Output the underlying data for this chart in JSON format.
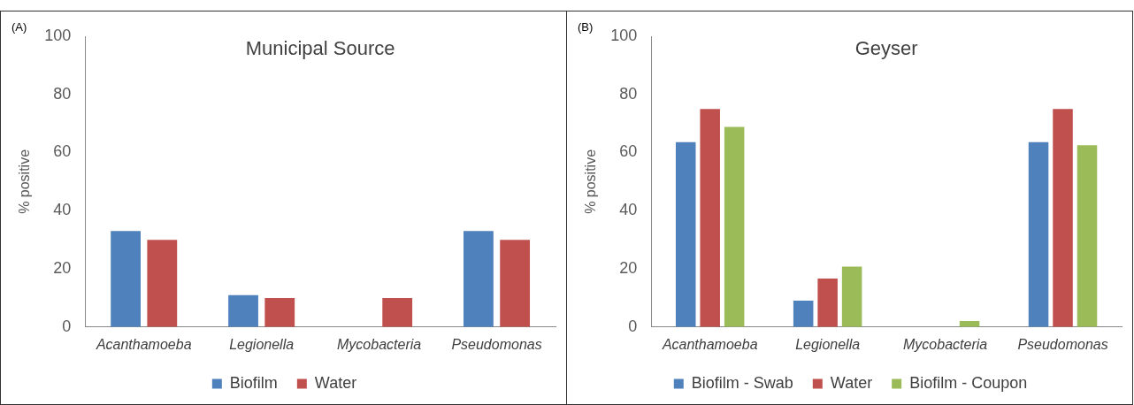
{
  "chart_data": [
    {
      "type": "bar",
      "title": "Municipal Source",
      "ylabel": "% positive",
      "annotations": [
        "(A)"
      ],
      "categories": [
        "Acanthamoeba",
        "Legionella",
        "Mycobacteria",
        "Pseudomonas"
      ],
      "series": [
        {
          "name": "Biofilm",
          "color": "#4f81bd",
          "values": [
            33,
            11,
            0,
            33
          ]
        },
        {
          "name": "Water",
          "color": "#c0504d",
          "values": [
            30,
            10,
            10,
            30
          ]
        }
      ],
      "ylim": [
        0,
        100
      ],
      "yticks": [
        0,
        20,
        40,
        60,
        80,
        100
      ],
      "grid": false,
      "legend": "bottom"
    },
    {
      "type": "bar",
      "title": "Geyser",
      "ylabel": "% positive",
      "annotations": [
        "(B)"
      ],
      "categories": [
        "Acanthamoeba",
        "Legionella",
        "Mycobacteria",
        "Pseudomonas"
      ],
      "series": [
        {
          "name": "Biofilm - Swab",
          "color": "#4f81bd",
          "values": [
            63.6,
            9.1,
            0,
            63.6
          ]
        },
        {
          "name": "Water",
          "color": "#c0504d",
          "values": [
            75,
            16.7,
            0,
            75
          ]
        },
        {
          "name": "Biofilm - Coupon",
          "color": "#9bbb59",
          "values": [
            68.8,
            20.8,
            2.1,
            62.5
          ]
        }
      ],
      "ylim": [
        0,
        100
      ],
      "yticks": [
        0,
        20,
        40,
        60,
        80,
        100
      ],
      "grid": false,
      "legend": "bottom"
    }
  ]
}
